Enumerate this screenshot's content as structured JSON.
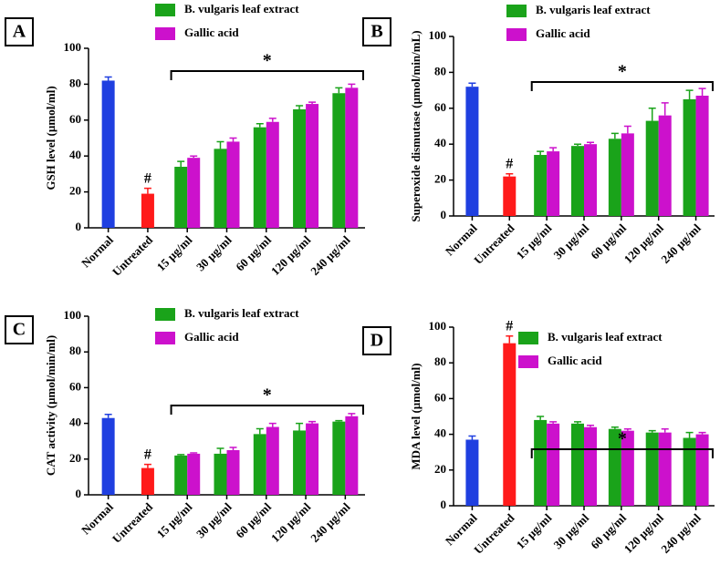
{
  "chart_data": [
    {
      "type": "bar",
      "panel": "A",
      "ylabel": "GSH level (µmol/ml)",
      "ylim": [
        0,
        100
      ],
      "yticks": [
        0,
        20,
        40,
        60,
        80,
        100
      ],
      "categories": [
        "Normal",
        "Untreated",
        "15 µg/ml",
        "30 µg/ml",
        "60 µg/ml",
        "120 µg/ml",
        "240 µg/ml"
      ],
      "hash_label": "#",
      "bracket_label": "*",
      "series": [
        {
          "colors": [
            "#1f3fe0",
            "#ff1a1a"
          ],
          "values": [
            82,
            19,
            null,
            null,
            null,
            null,
            null
          ],
          "errors": [
            2,
            3,
            null,
            null,
            null,
            null,
            null
          ]
        },
        {
          "name": "B. vulgaris leaf extract",
          "color": "#1aa31a",
          "values": [
            null,
            null,
            34,
            44,
            56,
            66,
            75
          ],
          "errors": [
            null,
            null,
            3,
            4,
            2,
            2,
            3
          ]
        },
        {
          "name": "Gallic acid",
          "color": "#cc11cc",
          "values": [
            null,
            null,
            39,
            48,
            59,
            69,
            78
          ],
          "errors": [
            null,
            null,
            1,
            2,
            2,
            1,
            2
          ]
        }
      ]
    },
    {
      "type": "bar",
      "panel": "B",
      "ylabel": "Superoxide dismutase (µmol/min/mL)",
      "ylim": [
        0,
        100
      ],
      "yticks": [
        0,
        20,
        40,
        60,
        80,
        100
      ],
      "categories": [
        "Normal",
        "Untreated",
        "15 µg/ml",
        "30 µg/ml",
        "60 µg/ml",
        "120 µg/ml",
        "240 µg/ml"
      ],
      "hash_label": "#",
      "bracket_label": "*",
      "series": [
        {
          "colors": [
            "#1f3fe0",
            "#ff1a1a"
          ],
          "values": [
            72,
            22,
            null,
            null,
            null,
            null,
            null
          ],
          "errors": [
            2,
            1.5,
            null,
            null,
            null,
            null,
            null
          ]
        },
        {
          "name": "B. vulgaris leaf extract",
          "color": "#1aa31a",
          "values": [
            null,
            null,
            34,
            39,
            43,
            53,
            65
          ],
          "errors": [
            null,
            null,
            2,
            1,
            3,
            7,
            5
          ]
        },
        {
          "name": "Gallic acid",
          "color": "#cc11cc",
          "values": [
            null,
            null,
            36,
            40,
            46,
            56,
            67
          ],
          "errors": [
            null,
            null,
            2,
            1,
            4,
            7,
            4
          ]
        }
      ]
    },
    {
      "type": "bar",
      "panel": "C",
      "ylabel": "CAT activity (µmol/min/ml)",
      "ylim": [
        0,
        100
      ],
      "yticks": [
        0,
        20,
        40,
        60,
        80,
        100
      ],
      "categories": [
        "Normal",
        "Untreated",
        "15 µg/ml",
        "30 µg/ml",
        "60 µg/ml",
        "120 µg/ml",
        "240 µg/ml"
      ],
      "hash_label": "#",
      "bracket_label": "*",
      "series": [
        {
          "colors": [
            "#1f3fe0",
            "#ff1a1a"
          ],
          "values": [
            43,
            15,
            null,
            null,
            null,
            null,
            null
          ],
          "errors": [
            2,
            2,
            null,
            null,
            null,
            null,
            null
          ]
        },
        {
          "name": "B. vulgaris leaf extract",
          "color": "#1aa31a",
          "values": [
            null,
            null,
            22,
            23,
            34,
            36,
            41
          ],
          "errors": [
            null,
            null,
            0.5,
            3,
            3,
            4,
            0.5
          ]
        },
        {
          "name": "Gallic acid",
          "color": "#cc11cc",
          "values": [
            null,
            null,
            23,
            25,
            38,
            40,
            44
          ],
          "errors": [
            null,
            null,
            0.5,
            1.5,
            2,
            1,
            1.5
          ]
        }
      ]
    },
    {
      "type": "bar",
      "panel": "D",
      "ylabel": "MDA level (µmol/ml)",
      "ylim": [
        0,
        100
      ],
      "yticks": [
        0,
        20,
        40,
        60,
        80,
        100
      ],
      "categories": [
        "Normal",
        "Untreated",
        "15 µg/ml",
        "30 µg/ml",
        "60 µg/ml",
        "120 µg/ml",
        "240 µg/ml"
      ],
      "hash_label": "#",
      "bracket_label": "*",
      "series": [
        {
          "colors": [
            "#1f3fe0",
            "#ff1a1a"
          ],
          "values": [
            37,
            91,
            null,
            null,
            null,
            null,
            null
          ],
          "errors": [
            2,
            4,
            null,
            null,
            null,
            null,
            null
          ]
        },
        {
          "name": "B. vulgaris leaf extract",
          "color": "#1aa31a",
          "values": [
            null,
            null,
            48,
            46,
            43,
            41,
            38
          ],
          "errors": [
            null,
            null,
            2,
            1,
            1,
            1,
            3
          ]
        },
        {
          "name": "Gallic acid",
          "color": "#cc11cc",
          "values": [
            null,
            null,
            46,
            44,
            42,
            41,
            40
          ],
          "errors": [
            null,
            null,
            1,
            1,
            1,
            2,
            1
          ]
        }
      ]
    }
  ]
}
